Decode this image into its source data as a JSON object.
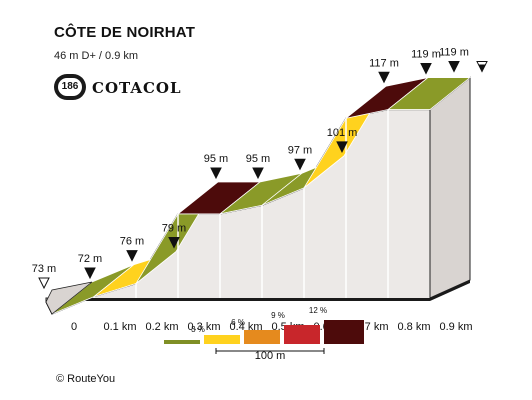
{
  "header": {
    "title": "CÔTE DE NOIRHAT",
    "subtitle": "46 m D+ / 0.9 km",
    "badge": "186",
    "brand": "COTACOL"
  },
  "credit": {
    "symbol": "©",
    "text": "RouteYou"
  },
  "chart_data": {
    "type": "area",
    "x": [
      0,
      0.1,
      0.2,
      0.3,
      0.4,
      0.5,
      0.6,
      0.7,
      0.8,
      0.9
    ],
    "elevation": [
      72,
      76,
      79,
      95,
      95,
      97,
      101,
      117,
      119,
      119
    ],
    "start_elevation": 73,
    "xlabel": "",
    "ylabel": "",
    "tick_labels": [
      "0",
      "0.1 km",
      "0.2 km",
      "0.3 km",
      "0.4 km",
      "0.5 km",
      "0.6 km",
      "0.7 km",
      "0.8 km",
      "0.9 km"
    ],
    "point_labels": [
      "73 m",
      "72 m",
      "76 m",
      "79 m",
      "95 m",
      "95 m",
      "97 m",
      "101 m",
      "117 m",
      "119 m",
      "119 m"
    ],
    "segment_colors": [
      "#8a9a28",
      "#ffd21e",
      "#8a9a28",
      "#4d0b0b",
      "#8a9a28",
      "#8a9a28",
      "#ffd21e",
      "#4d0b0b",
      "#8a9a28"
    ],
    "legend": {
      "labels": [
        "3 %",
        "6 %",
        "9 %",
        "12 %"
      ],
      "colors": [
        "#7f8f25",
        "#ffd21e",
        "#e58a1e",
        "#c8262b",
        "#4d0b0b"
      ],
      "scale_label": "100 m"
    }
  }
}
